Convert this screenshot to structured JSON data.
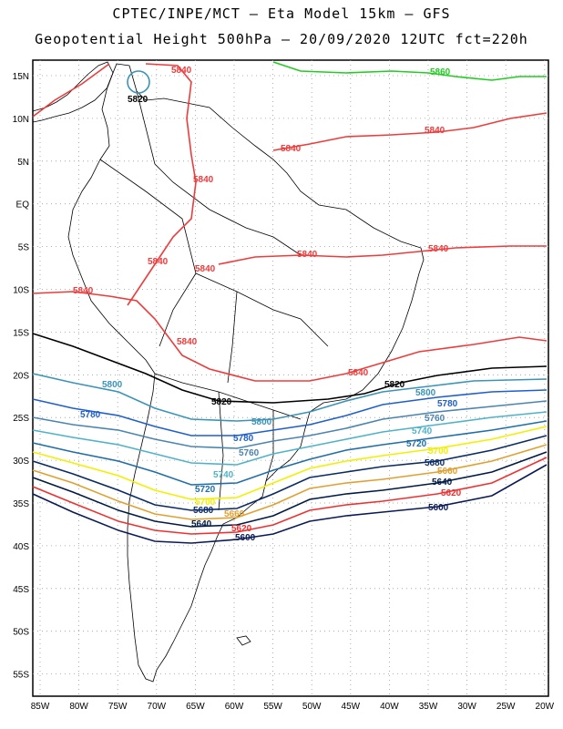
{
  "title_line1": "CPTEC/INPE/MCT –  Eta Model 15km – GFS",
  "title_line2": "Geopotential Height 500hPa – 20/09/2020 12UTC fct=220h",
  "lat_labels": [
    "15N",
    "10N",
    "5N",
    "EQ",
    "5S",
    "10S",
    "15S",
    "20S",
    "25S",
    "30S",
    "35S",
    "40S",
    "45S",
    "50S",
    "55S"
  ],
  "lon_labels": [
    "85W",
    "80W",
    "75W",
    "70W",
    "65W",
    "60W",
    "55W",
    "50W",
    "45W",
    "40W",
    "35W",
    "30W",
    "25W",
    "20W"
  ],
  "contour_labels": {
    "c5840": "5840",
    "c5860": "5860",
    "c5820": "5820",
    "c5800": "5800",
    "c5780": "5780",
    "c5760": "5760",
    "c5740": "5740",
    "c5720": "5720",
    "c5700": "5700",
    "c5680": "5680",
    "c5660": "5660",
    "c5640": "5640",
    "c5620": "5620",
    "c5600": "5600"
  },
  "colors": {
    "c5860": "#22cc22",
    "c5840": "#ee3b3b",
    "c5820": "#000000",
    "c5800": "#3a93b8",
    "c5780": "#1e5fcc",
    "c5760": "#4a84b0",
    "c5740": "#4fb3c8",
    "c5720": "#1f6ea8",
    "c5700": "#f2f000",
    "c5680": "#0a2a66",
    "c5660": "#e0a030",
    "c5640": "#001a44",
    "c5620": "#ee3030",
    "c5600": "#0a1a55"
  }
}
